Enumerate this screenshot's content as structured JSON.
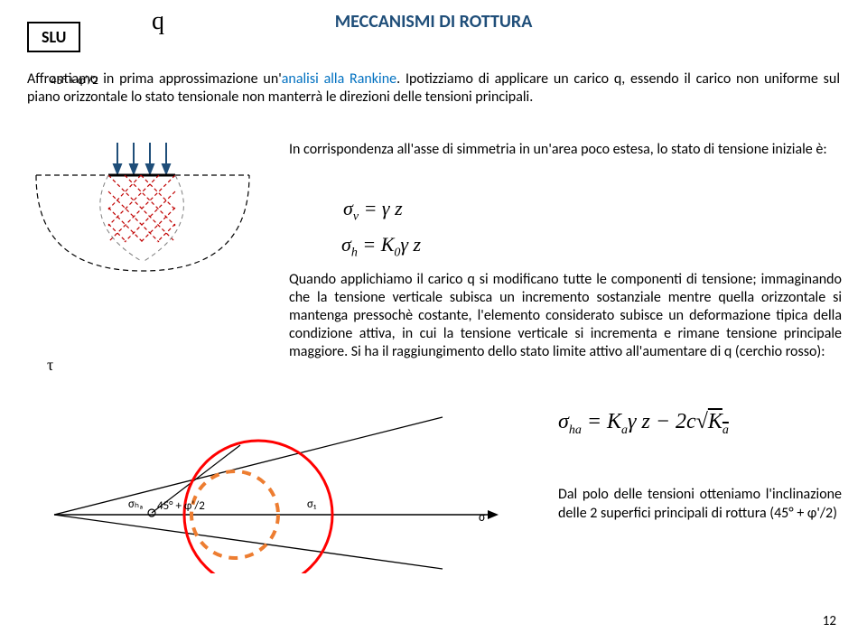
{
  "title": "MECCANISMI DI ROTTURA",
  "slu": "SLU",
  "intro": {
    "part1": "Affrontiamo in prima approssimazione un'",
    "blue1": "analisi alla Rankine",
    "part2": ". Ipotizziamo di applicare un carico q, essendo il carico non uniforme sul piano orizzontale lo stato tensionale non manterrà le direzioni delle tensioni principali."
  },
  "figure1": {
    "q_label": "q",
    "angle_label": "45° + φ'/2",
    "arrow_color": "#1f4e79",
    "cross_color": "#c00000",
    "dash_color": "#7f7f7f"
  },
  "text1": "In corrispondenza all'asse di simmetria in un'area poco estesa, lo stato di tensione iniziale è:",
  "formulas": {
    "f1_html": "σ<span class=\"sub\">v</span> = γ z",
    "f2_html": "σ<span class=\"sub\">h</span> = K<span class=\"sub\">0</span>γ z",
    "f3_html": "σ<span class=\"sub\">ha</span> = K<span class=\"sub\">a</span>γ z − 2c<span class=\"sqrt-sym\">√</span><span class=\"sqrt-over\">K<span class=\"sub\">a</span></span>"
  },
  "text2": "Quando applichiamo il carico q si modificano tutte le componenti di tensione; immaginando che la tensione verticale subisca un incremento sostanziale mentre quella orizzontale si mantenga pressochè costante, l'elemento considerato subisce un deformazione tipica della condizione attiva, in cui la tensione verticale si incrementa e rimane tensione principale maggiore. Si ha il raggiungimento dello stato limite attivo all'aumentare di q (cerchio rosso):",
  "tau_label": "τ",
  "mohr": {
    "sigma_ha": "σₕₐ",
    "angle": "45° + φ'/2",
    "sigma_1": "σ₁",
    "sigma_axis": "σ",
    "red_color": "#ff0000",
    "orange_color": "#ed7d31",
    "line_color": "#000000"
  },
  "text3": "Dal polo delle tensioni otteniamo l'inclinazione delle 2 superfici principali di rottura (45° + φ'/2)",
  "page_number": "12"
}
